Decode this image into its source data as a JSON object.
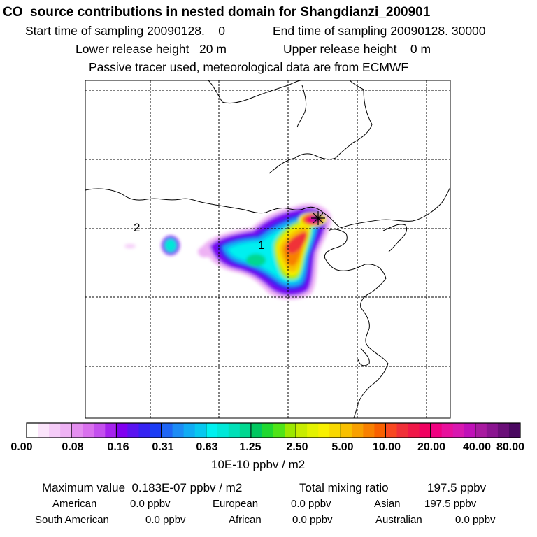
{
  "title": "CO  source contributions in nested domain for Shangdianzi_200901",
  "header": {
    "start": "Start time of sampling 20090128.    0",
    "end": "End time of sampling 20090128. 30000",
    "lower": "Lower release height   20 m",
    "upper": "Upper release height    0 m",
    "note": "Passive tracer used, meteorological data are from ECMWF"
  },
  "map": {
    "markers": [
      "1",
      "2"
    ],
    "receptor": "Shangdianzi station star marker"
  },
  "colorbar": {
    "tick_labels": [
      "0.00",
      "0.08",
      "0.16",
      "0.31",
      "0.63",
      "1.25",
      "2.50",
      "5.00",
      "10.00",
      "20.00",
      "40.00",
      "80.00"
    ],
    "unit": "10E-10 ppbv / m2",
    "colors": [
      [
        "#ffffff",
        "#fbe4fb",
        "#f5ccf8",
        "#eeb2f4"
      ],
      [
        "#e48ef0",
        "#d970ee",
        "#c44fee",
        "#a622ee"
      ],
      [
        "#8000f0",
        "#5a14f0",
        "#3623f2",
        "#1b3cf5"
      ],
      [
        "#1f66f5",
        "#1c8cf5",
        "#10acf4",
        "#07c8f0"
      ],
      [
        "#00f0f0",
        "#00e8d8",
        "#00e0b8",
        "#00d890"
      ],
      [
        "#00c860",
        "#20d830",
        "#50e418",
        "#9ce800"
      ],
      [
        "#c8ec00",
        "#e4f200",
        "#f8f000",
        "#f8d800"
      ],
      [
        "#f8c000",
        "#f8a000",
        "#f88000",
        "#f86000"
      ],
      [
        "#f84820",
        "#f03038",
        "#f01848",
        "#f00060"
      ],
      [
        "#f00080",
        "#e8109c",
        "#d818b0",
        "#c010b8"
      ],
      [
        "#a81aa0",
        "#8a1490",
        "#6a0e78",
        "#4a0860"
      ]
    ]
  },
  "stats": {
    "max_label": "Maximum value  0.183E-07 ppbv / m2",
    "total_label": "Total mixing ratio",
    "total_value": "197.5 ppbv",
    "regions": [
      {
        "name": "American",
        "value": "0.0 ppbv"
      },
      {
        "name": "European",
        "value": "0.0 ppbv"
      },
      {
        "name": "Asian",
        "value": "197.5 ppbv"
      },
      {
        "name": "South American",
        "value": "0.0 ppbv"
      },
      {
        "name": "African",
        "value": "0.0 ppbv"
      },
      {
        "name": "Australian",
        "value": "0.0 ppbv"
      }
    ]
  }
}
